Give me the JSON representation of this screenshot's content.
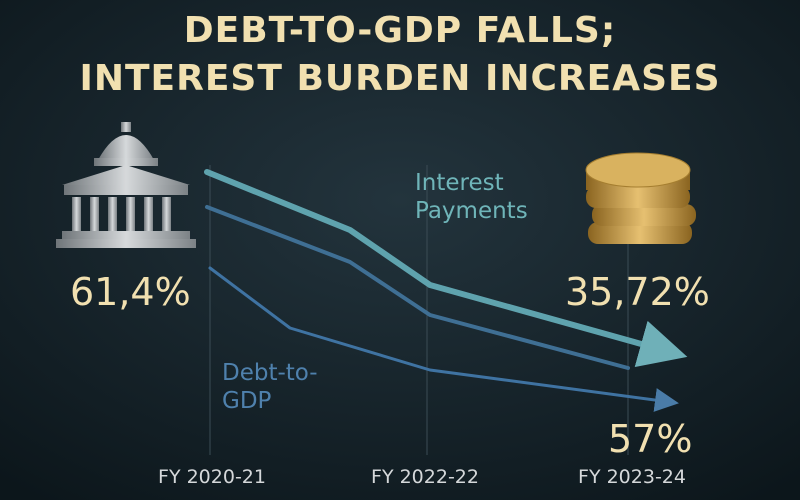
{
  "title_lines": [
    "DEBT-TO-GDP  FALLS;",
    "INTEREST BURDEN INCREASES"
  ],
  "callouts": {
    "debt_start": "61,4%",
    "interest_end": "35,72%",
    "debt_end": "57%"
  },
  "series_labels": {
    "interest": [
      "Interest",
      "Payments"
    ],
    "debt": [
      "Debt-to-",
      "GDP"
    ]
  },
  "x_labels": [
    "FY 2020-21",
    "FY 2022-22",
    "FY 2023-24"
  ]
}
